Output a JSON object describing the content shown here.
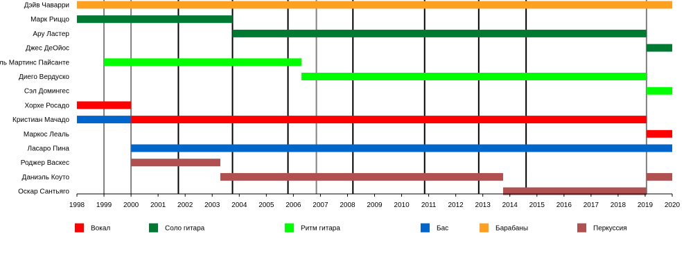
{
  "chart_data": {
    "type": "timeline",
    "xlim": [
      1998,
      2020
    ],
    "x_ticks": [
      "1998",
      "1999",
      "2000",
      "2001",
      "2002",
      "2003",
      "2004",
      "2005",
      "2006",
      "2007",
      "2008",
      "2009",
      "2010",
      "2011",
      "2012",
      "2013",
      "2014",
      "2015",
      "2016",
      "2017",
      "2018",
      "2019",
      "2020"
    ],
    "legend_position": "bottom",
    "roles": [
      {
        "key": "vocal",
        "label": "Вокал",
        "color": "#ff0000"
      },
      {
        "key": "lead",
        "label": "Соло гитара",
        "color": "#007a33"
      },
      {
        "key": "rhythm",
        "label": "Ритм гитара",
        "color": "#00ff00"
      },
      {
        "key": "bass",
        "label": "Бас",
        "color": "#0066cc"
      },
      {
        "key": "drums",
        "label": "Барабаны",
        "color": "#ffa020"
      },
      {
        "key": "perc",
        "label": "Перкуссия",
        "color": "#b05050"
      }
    ],
    "members": [
      {
        "name": "Дэйв Чаварри",
        "periods": [
          {
            "role": "drums",
            "start": 1998,
            "end": 2020
          }
        ]
      },
      {
        "name": "Марк Риццо",
        "periods": [
          {
            "role": "lead",
            "start": 1998,
            "end": 2003.75
          }
        ]
      },
      {
        "name": "Ару Ластер",
        "periods": [
          {
            "role": "lead",
            "start": 2003.75,
            "end": 2019.05
          }
        ]
      },
      {
        "name": "Джес ДеОйос",
        "periods": [
          {
            "role": "lead",
            "start": 2019.05,
            "end": 2020
          }
        ]
      },
      {
        "name": "Рафаэль Мартинс Пайсанте",
        "periods": [
          {
            "role": "rhythm",
            "start": 1999,
            "end": 2006.3
          }
        ]
      },
      {
        "name": "Диего Вердуско",
        "periods": [
          {
            "role": "rhythm",
            "start": 2006.3,
            "end": 2019.05
          }
        ]
      },
      {
        "name": "Сэл Домингес",
        "periods": [
          {
            "role": "rhythm",
            "start": 2019.05,
            "end": 2020
          }
        ]
      },
      {
        "name": "Хорхе Росадо",
        "periods": [
          {
            "role": "vocal",
            "start": 1998,
            "end": 2000
          }
        ]
      },
      {
        "name": "Кристиан Мачадо",
        "periods": [
          {
            "role": "bass",
            "start": 1998,
            "end": 2000
          },
          {
            "role": "vocal",
            "start": 2000,
            "end": 2019.05
          }
        ]
      },
      {
        "name": "Маркос Леаль",
        "periods": [
          {
            "role": "vocal",
            "start": 2019.05,
            "end": 2020
          }
        ]
      },
      {
        "name": "Ласаро Пина",
        "periods": [
          {
            "role": "bass",
            "start": 2000,
            "end": 2020
          }
        ]
      },
      {
        "name": "Роджер Васкес",
        "periods": [
          {
            "role": "perc",
            "start": 2000,
            "end": 2003.3
          }
        ]
      },
      {
        "name": "Даниэль Коуто",
        "periods": [
          {
            "role": "perc",
            "start": 2003.3,
            "end": 2013.75
          },
          {
            "role": "perc",
            "start": 2019.05,
            "end": 2020
          }
        ]
      },
      {
        "name": "Оскар Сантьяго",
        "periods": [
          {
            "role": "perc",
            "start": 2013.75,
            "end": 2019.05
          }
        ]
      }
    ],
    "events": [
      {
        "type": "release",
        "x": 1999
      },
      {
        "type": "release",
        "x": 2000
      },
      {
        "type": "album",
        "x": 2001.75
      },
      {
        "type": "album",
        "x": 2003.75
      },
      {
        "type": "album",
        "x": 2005.8
      },
      {
        "type": "release",
        "x": 2006.85
      },
      {
        "type": "album",
        "x": 2008.2
      },
      {
        "type": "album",
        "x": 2010.85
      },
      {
        "type": "album",
        "x": 2012.85
      },
      {
        "type": "album",
        "x": 2014.6
      },
      {
        "type": "release",
        "x": 2019.05
      }
    ],
    "event_colors": {
      "album": "#000000",
      "release": "#808080"
    }
  }
}
